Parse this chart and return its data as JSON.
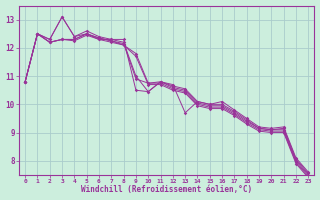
{
  "xlabel": "Windchill (Refroidissement éolien,°C)",
  "bg_color": "#cceedd",
  "grid_color": "#aacccc",
  "line_color": "#993399",
  "axis_color": "#993399",
  "xlim": [
    -0.5,
    23.5
  ],
  "ylim": [
    7.5,
    13.5
  ],
  "xticks": [
    0,
    1,
    2,
    3,
    4,
    5,
    6,
    7,
    8,
    9,
    10,
    11,
    12,
    13,
    14,
    15,
    16,
    17,
    18,
    19,
    20,
    21,
    22,
    23
  ],
  "yticks": [
    8,
    9,
    10,
    11,
    12,
    13
  ],
  "lines": [
    [
      10.8,
      12.5,
      12.3,
      13.1,
      12.4,
      12.6,
      12.4,
      12.3,
      12.3,
      10.5,
      10.45,
      10.8,
      10.7,
      9.7,
      10.1,
      10.0,
      10.1,
      9.8,
      9.5,
      9.2,
      9.15,
      9.2,
      8.1,
      7.6
    ],
    [
      10.8,
      12.5,
      12.3,
      13.1,
      12.4,
      12.5,
      12.3,
      12.3,
      12.2,
      11.0,
      10.45,
      10.8,
      10.65,
      10.55,
      10.1,
      10.0,
      10.0,
      9.75,
      9.45,
      9.15,
      9.1,
      9.15,
      8.05,
      7.55
    ],
    [
      10.8,
      12.5,
      12.2,
      12.3,
      12.3,
      12.5,
      12.35,
      12.25,
      12.15,
      10.9,
      10.75,
      10.8,
      10.6,
      10.5,
      10.05,
      9.95,
      9.95,
      9.7,
      9.4,
      9.15,
      9.1,
      9.1,
      8.0,
      7.5
    ],
    [
      10.8,
      12.5,
      12.2,
      12.3,
      12.3,
      12.5,
      12.35,
      12.25,
      12.1,
      11.8,
      10.75,
      10.75,
      10.55,
      10.45,
      10.0,
      9.9,
      9.9,
      9.65,
      9.35,
      9.1,
      9.05,
      9.05,
      7.95,
      7.45
    ],
    [
      10.8,
      12.5,
      12.2,
      12.3,
      12.25,
      12.45,
      12.3,
      12.2,
      12.1,
      11.7,
      10.7,
      10.7,
      10.5,
      10.4,
      9.95,
      9.85,
      9.85,
      9.6,
      9.3,
      9.05,
      9.0,
      9.0,
      7.9,
      7.4
    ]
  ]
}
